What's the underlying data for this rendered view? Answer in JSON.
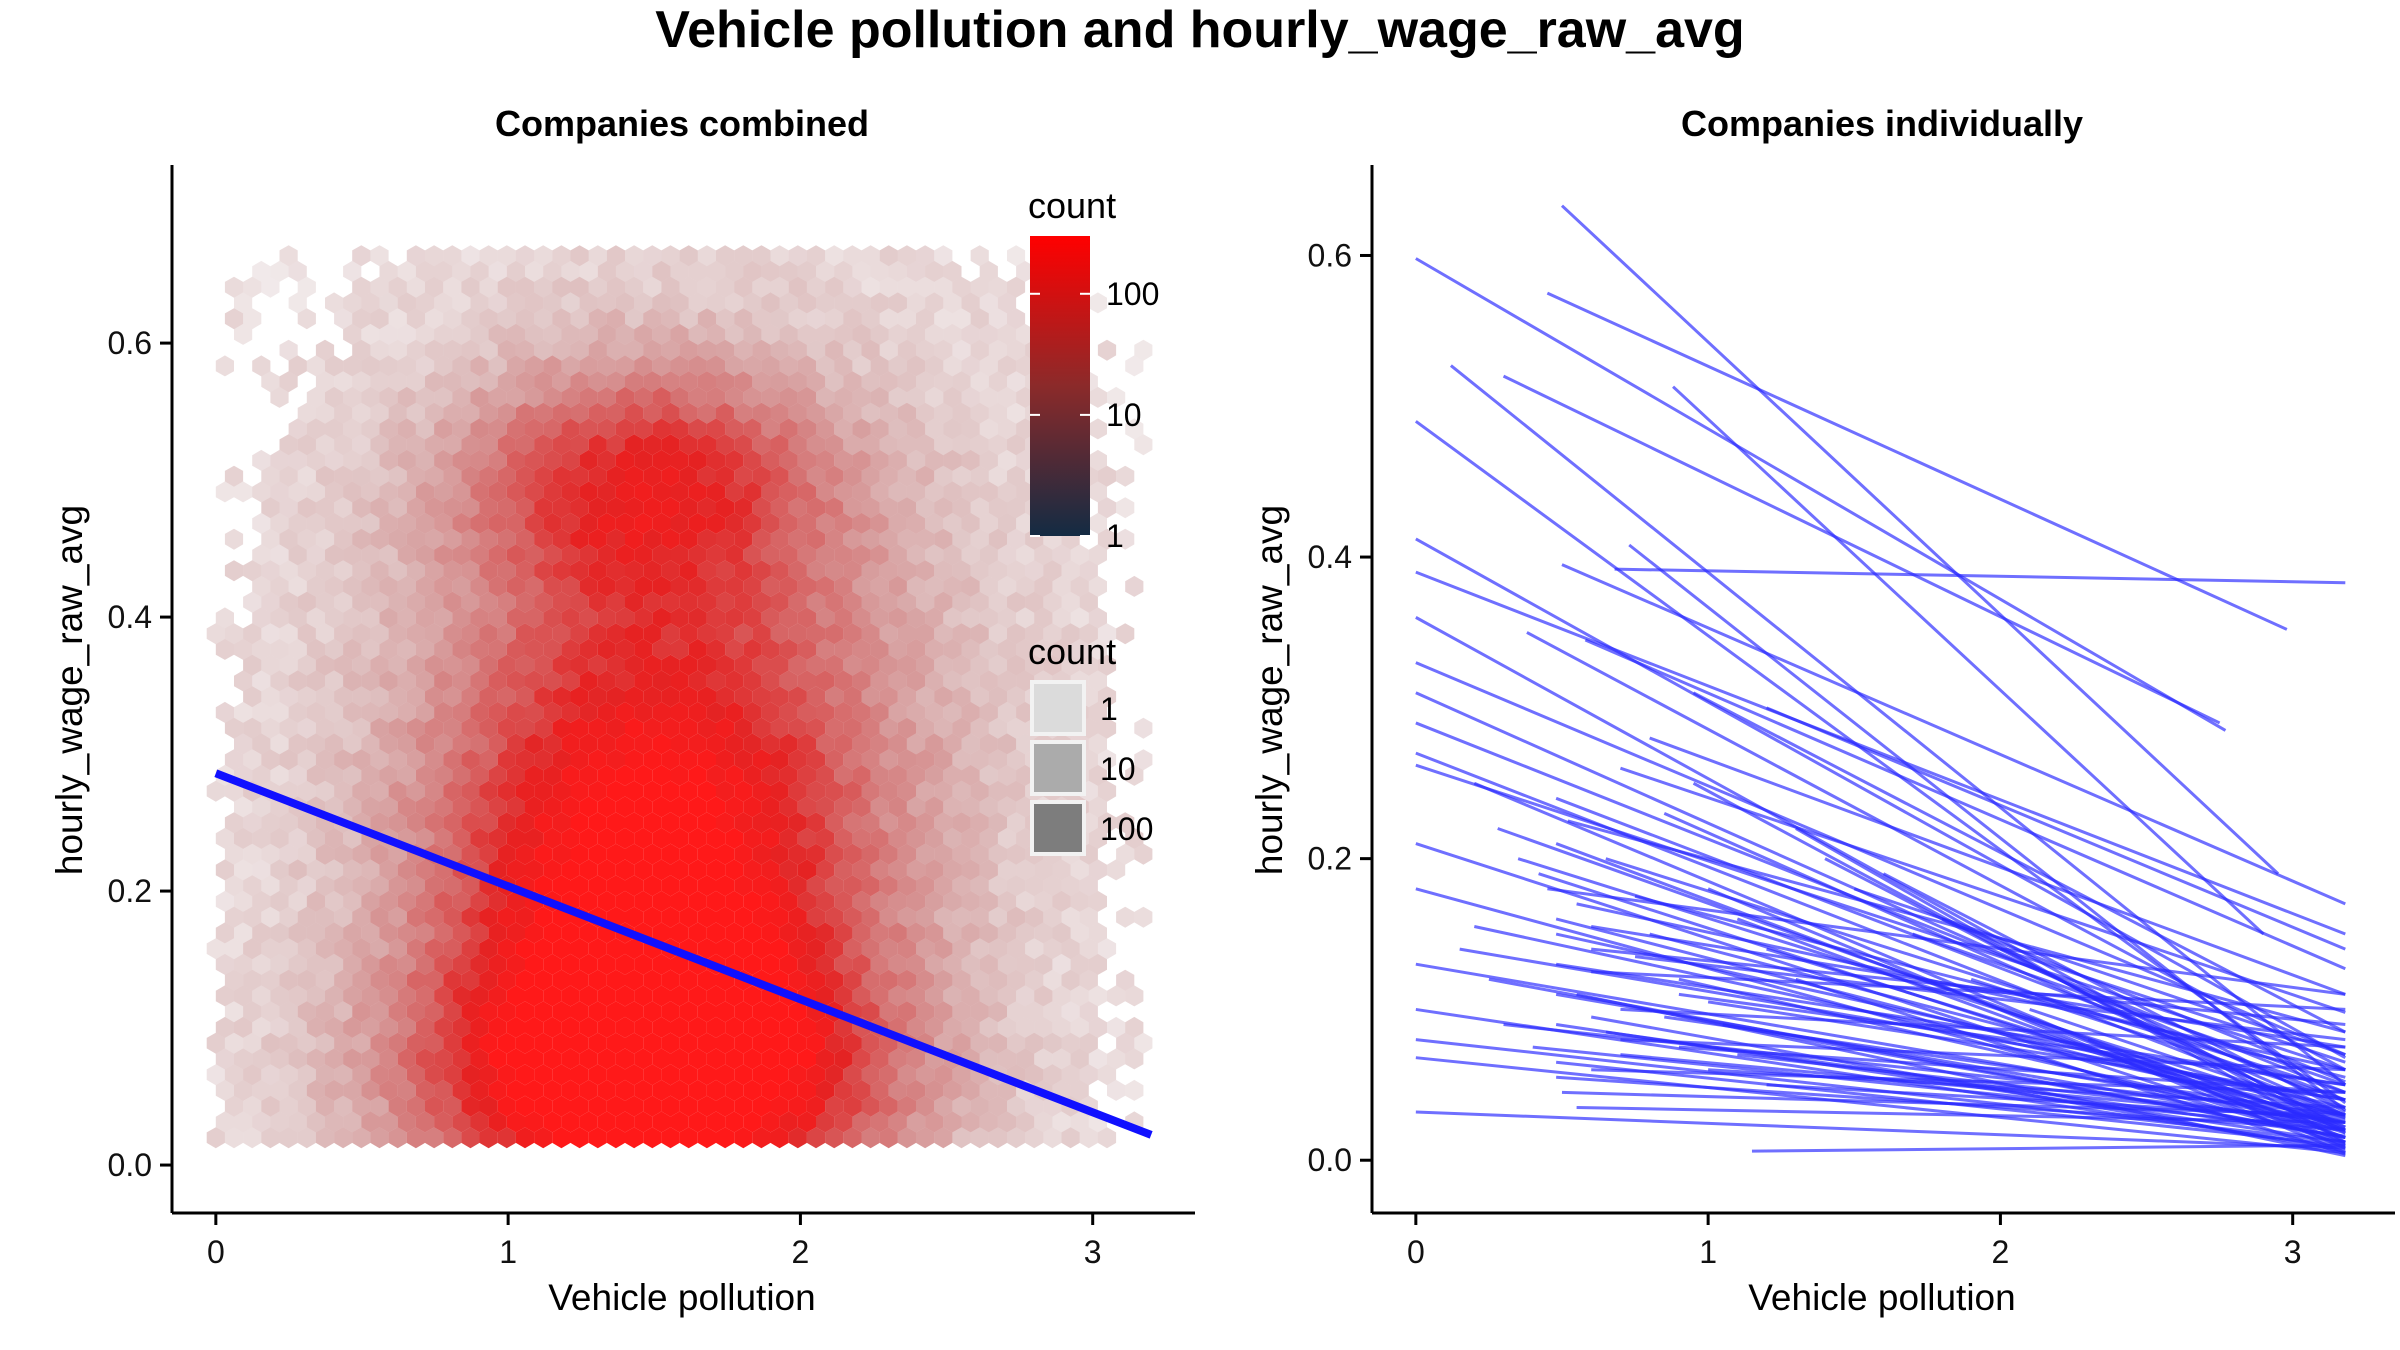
{
  "title": "Vehicle pollution and hourly_wage_raw_avg",
  "chart_data": [
    {
      "type": "hexbin",
      "title": "Companies combined",
      "xlabel": "Vehicle pollution",
      "ylabel": "hourly_wage_raw_avg",
      "xlim": [
        -0.15,
        3.35
      ],
      "ylim": [
        -0.035,
        0.73
      ],
      "xticks": [
        "0",
        "1",
        "2",
        "3"
      ],
      "xtick_values": [
        0,
        1,
        2,
        3
      ],
      "yticks": [
        "0.0",
        "0.2",
        "0.4",
        "0.6"
      ],
      "ytick_values": [
        0,
        0.2,
        0.4,
        0.6
      ],
      "grid": false,
      "fill_scale": {
        "low_color": "#132B43",
        "mid_color": "#8B2A2A",
        "high_color": "#FF0000",
        "log_scale": true
      },
      "legends": [
        {
          "title": "count",
          "kind": "colorbar",
          "labels": [
            "100",
            "10",
            "1"
          ],
          "values": [
            100,
            10,
            1
          ],
          "placement": "top-right"
        },
        {
          "title": "count",
          "kind": "alpha",
          "labels": [
            "1",
            "10",
            "100"
          ],
          "values": [
            1,
            10,
            100
          ],
          "placement": "right"
        }
      ],
      "density_clusters": [
        {
          "x": 1.5,
          "y": 0.06,
          "sx": 0.55,
          "sy": 0.07,
          "weight": 1.0
        },
        {
          "x": 1.45,
          "y": 0.2,
          "sx": 0.5,
          "sy": 0.12,
          "weight": 0.75
        },
        {
          "x": 1.45,
          "y": 0.5,
          "sx": 0.45,
          "sy": 0.06,
          "weight": 0.55
        },
        {
          "x": 1.6,
          "y": 0.33,
          "sx": 0.65,
          "sy": 0.16,
          "weight": 0.45
        }
      ],
      "hex_x_range": [
        0.0,
        3.2
      ],
      "hex_y_range": [
        0.02,
        0.67
      ],
      "trend_line": {
        "color": "#1010FF",
        "x": [
          0,
          3.2
        ],
        "y": [
          0.286,
          0.022
        ]
      }
    },
    {
      "type": "line",
      "title": "Companies individually",
      "xlabel": "Vehicle pollution",
      "ylabel": "hourly_wage_raw_avg",
      "xlim": [
        -0.15,
        3.35
      ],
      "ylim": [
        -0.035,
        0.66
      ],
      "xticks": [
        "0",
        "1",
        "2",
        "3"
      ],
      "xtick_values": [
        0,
        1,
        2,
        3
      ],
      "yticks": [
        "0.0",
        "0.2",
        "0.4",
        "0.6"
      ],
      "ytick_values": [
        0,
        0.2,
        0.4,
        0.6
      ],
      "grid": false,
      "line_color": "#2B2BFF",
      "lines": [
        [
          0.0,
          0.598,
          2.77,
          0.285
        ],
        [
          0.5,
          0.633,
          2.95,
          0.19
        ],
        [
          0.45,
          0.575,
          2.98,
          0.352
        ],
        [
          0.88,
          0.513,
          2.9,
          0.15
        ],
        [
          0.12,
          0.527,
          3.18,
          0.05
        ],
        [
          0.3,
          0.52,
          2.75,
          0.29
        ],
        [
          0.0,
          0.49,
          3.18,
          0.038
        ],
        [
          0.68,
          0.392,
          3.18,
          0.383
        ],
        [
          0.0,
          0.412,
          3.18,
          0.068
        ],
        [
          0.0,
          0.39,
          3.18,
          0.15
        ],
        [
          0.0,
          0.36,
          3.18,
          0.02
        ],
        [
          0.0,
          0.33,
          3.18,
          0.07
        ],
        [
          0.0,
          0.31,
          3.18,
          0.035
        ],
        [
          0.0,
          0.29,
          3.18,
          0.045
        ],
        [
          0.0,
          0.27,
          3.18,
          0.03
        ],
        [
          0.0,
          0.262,
          3.18,
          0.06
        ],
        [
          0.0,
          0.21,
          3.18,
          0.01
        ],
        [
          0.0,
          0.18,
          3.18,
          0.012
        ],
        [
          0.0,
          0.13,
          3.18,
          0.025
        ],
        [
          0.0,
          0.1,
          3.18,
          0.008
        ],
        [
          0.0,
          0.08,
          3.18,
          0.012
        ],
        [
          0.0,
          0.068,
          3.18,
          0.005
        ],
        [
          0.0,
          0.032,
          3.18,
          0.008
        ],
        [
          0.5,
          0.395,
          3.18,
          0.17
        ],
        [
          0.58,
          0.345,
          3.18,
          0.127
        ],
        [
          0.73,
          0.408,
          3.18,
          0.033
        ],
        [
          0.95,
          0.31,
          3.18,
          0.085
        ],
        [
          1.2,
          0.3,
          3.18,
          0.14
        ],
        [
          0.28,
          0.22,
          3.18,
          0.02
        ],
        [
          0.38,
          0.35,
          3.18,
          0.06
        ],
        [
          0.48,
          0.24,
          3.18,
          0.04
        ],
        [
          0.48,
          0.21,
          3.18,
          0.015
        ],
        [
          0.48,
          0.16,
          3.18,
          0.025
        ],
        [
          0.48,
          0.15,
          3.18,
          0.035
        ],
        [
          0.48,
          0.13,
          3.18,
          0.05
        ],
        [
          0.48,
          0.11,
          3.18,
          0.02
        ],
        [
          0.48,
          0.09,
          3.18,
          0.012
        ],
        [
          0.48,
          0.065,
          3.18,
          0.01
        ],
        [
          0.48,
          0.055,
          3.18,
          0.02
        ],
        [
          0.65,
          0.2,
          3.18,
          0.045
        ],
        [
          0.75,
          0.175,
          3.18,
          0.055
        ],
        [
          0.8,
          0.15,
          3.18,
          0.03
        ],
        [
          0.9,
          0.12,
          3.18,
          0.02
        ],
        [
          1.0,
          0.105,
          3.18,
          0.04
        ],
        [
          1.05,
          0.09,
          3.18,
          0.015
        ],
        [
          1.1,
          0.07,
          3.18,
          0.025
        ],
        [
          1.15,
          0.006,
          3.18,
          0.01
        ],
        [
          0.6,
          0.14,
          3.18,
          0.09
        ],
        [
          0.6,
          0.125,
          3.18,
          0.1
        ],
        [
          0.7,
          0.1,
          3.18,
          0.075
        ],
        [
          0.7,
          0.08,
          3.18,
          0.06
        ],
        [
          0.6,
          0.06,
          3.18,
          0.045
        ],
        [
          0.5,
          0.045,
          3.18,
          0.03
        ],
        [
          0.55,
          0.035,
          3.18,
          0.025
        ],
        [
          0.85,
          0.23,
          3.18,
          0.03
        ],
        [
          0.95,
          0.25,
          3.18,
          0.018
        ],
        [
          1.3,
          0.22,
          3.18,
          0.012
        ],
        [
          1.4,
          0.2,
          3.18,
          0.022
        ],
        [
          1.6,
          0.19,
          3.18,
          0.032
        ],
        [
          1.8,
          0.16,
          3.18,
          0.052
        ],
        [
          2.0,
          0.14,
          3.18,
          0.065
        ],
        [
          0.2,
          0.25,
          3.18,
          0.008
        ],
        [
          0.35,
          0.2,
          3.18,
          0.028
        ],
        [
          0.42,
          0.19,
          3.18,
          0.018
        ],
        [
          0.55,
          0.17,
          3.18,
          0.06
        ],
        [
          0.6,
          0.155,
          3.18,
          0.075
        ],
        [
          0.75,
          0.135,
          3.18,
          0.08
        ],
        [
          0.9,
          0.11,
          3.18,
          0.05
        ],
        [
          0.85,
          0.095,
          3.18,
          0.03
        ],
        [
          0.9,
          0.075,
          3.18,
          0.045
        ],
        [
          1.0,
          0.06,
          3.18,
          0.035
        ],
        [
          1.2,
          0.05,
          3.18,
          0.028
        ],
        [
          0.15,
          0.14,
          3.18,
          0.04
        ],
        [
          0.2,
          0.155,
          3.18,
          0.03
        ],
        [
          0.25,
          0.12,
          3.18,
          0.015
        ],
        [
          0.3,
          0.09,
          3.18,
          0.03
        ],
        [
          0.4,
          0.075,
          3.18,
          0.02
        ],
        [
          0.45,
          0.18,
          3.18,
          0.11
        ],
        [
          0.52,
          0.225,
          3.18,
          0.085
        ],
        [
          0.7,
          0.26,
          3.18,
          0.098
        ],
        [
          0.8,
          0.28,
          3.18,
          0.11
        ],
        [
          1.5,
          0.18,
          3.18,
          0.07
        ],
        [
          1.7,
          0.15,
          3.18,
          0.05
        ],
        [
          1.9,
          0.12,
          3.18,
          0.04
        ],
        [
          2.1,
          0.1,
          3.18,
          0.03
        ],
        [
          2.3,
          0.08,
          3.18,
          0.02
        ],
        [
          2.5,
          0.06,
          3.18,
          0.015
        ],
        [
          1.0,
          0.18,
          3.18,
          0.005
        ],
        [
          1.1,
          0.16,
          3.18,
          0.012
        ],
        [
          1.2,
          0.14,
          3.18,
          0.022
        ],
        [
          1.3,
          0.12,
          3.18,
          0.004
        ],
        [
          0.55,
          0.11,
          3.18,
          0.003
        ],
        [
          0.6,
          0.095,
          3.18,
          0.006
        ],
        [
          0.65,
          0.085,
          3.18,
          0.016
        ],
        [
          0.7,
          0.07,
          3.18,
          0.026
        ]
      ]
    }
  ]
}
